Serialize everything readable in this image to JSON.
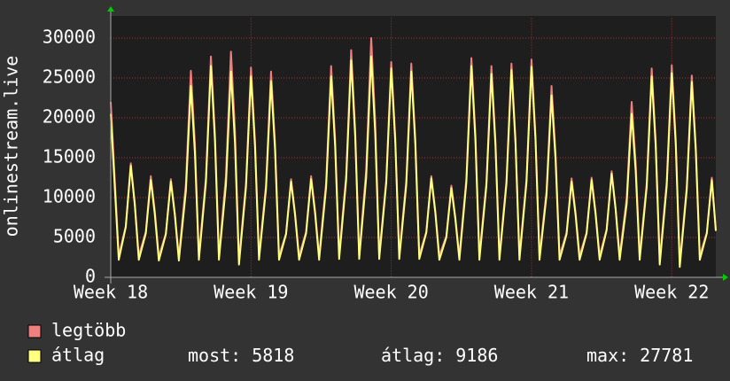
{
  "chart_data": {
    "type": "line",
    "y_label": "onlinestream.live",
    "x": [
      0,
      0.4,
      0.75,
      1,
      1.2,
      1.4,
      1.75,
      2,
      2.2,
      2.4,
      2.75,
      3,
      3.2,
      3.4,
      3.75,
      4,
      4.2,
      4.4,
      4.75,
      5,
      5.2,
      5.4,
      5.75,
      6,
      6.2,
      6.4,
      6.75,
      7,
      7.2,
      7.4,
      7.75,
      8,
      8.2,
      8.4,
      8.75,
      9,
      9.2,
      9.4,
      9.75,
      10,
      10.2,
      10.4,
      10.75,
      11,
      11.2,
      11.4,
      11.75,
      12,
      12.2,
      12.4,
      12.75,
      13,
      13.2,
      13.4,
      13.75,
      14,
      14.2,
      14.4,
      14.75,
      15,
      15.2,
      15.4,
      15.75,
      16,
      16.2,
      16.4,
      16.75,
      17,
      17.2,
      17.4,
      17.75,
      18,
      18.2,
      18.4,
      18.75,
      19,
      19.2,
      19.4,
      19.75,
      20,
      20.2,
      20.4,
      20.75,
      21,
      21.2,
      21.4,
      21.75,
      22,
      22.2,
      22.4,
      22.75,
      23,
      23.2,
      23.4,
      23.75,
      24,
      24.2,
      24.4,
      24.75,
      25,
      25.2,
      25.4,
      25.75,
      26,
      26.2,
      26.4,
      26.75,
      27,
      27.2,
      27.4,
      27.75,
      28,
      28.2,
      28.4,
      28.75,
      29,
      29.2,
      29.4,
      29.75,
      30,
      30.2
    ],
    "series": [
      {
        "name": "legtöbb",
        "color": "#f08080",
        "values": [
          22000,
          2700,
          6400,
          14300,
          9300,
          2700,
          5700,
          12700,
          8300,
          2600,
          5500,
          12300,
          8000,
          2600,
          11700,
          25900,
          16800,
          2700,
          12500,
          27700,
          18000,
          2700,
          12700,
          28300,
          18400,
          2200,
          11800,
          26300,
          17100,
          2700,
          11600,
          25800,
          16800,
          2700,
          5500,
          12300,
          8000,
          2700,
          5700,
          12700,
          8300,
          2700,
          11900,
          26500,
          17200,
          2800,
          12800,
          28500,
          18500,
          2800,
          13500,
          30000,
          19500,
          2800,
          12200,
          27000,
          17600,
          2800,
          12100,
          26800,
          17400,
          2800,
          5700,
          12700,
          8300,
          2700,
          5200,
          11500,
          7500,
          2700,
          12400,
          27500,
          17900,
          2700,
          11900,
          26500,
          17200,
          2700,
          12100,
          26800,
          17400,
          2700,
          12300,
          27300,
          17700,
          2700,
          10800,
          24000,
          15600,
          2700,
          5600,
          12400,
          8100,
          2700,
          5600,
          12500,
          8100,
          2700,
          6000,
          13300,
          8600,
          2700,
          9900,
          22000,
          14300,
          2700,
          11800,
          26200,
          17000,
          2200,
          12000,
          26600,
          17300,
          1800,
          11400,
          25300,
          16400,
          2700,
          5600,
          12500,
          6000
        ]
      },
      {
        "name": "átlag",
        "color": "#ffff80",
        "values": [
          20500,
          2200,
          6300,
          14000,
          9100,
          2200,
          5500,
          12200,
          7900,
          2100,
          5400,
          12000,
          7800,
          2100,
          10800,
          24000,
          15600,
          2200,
          11900,
          26500,
          17200,
          2200,
          11600,
          25800,
          16800,
          1600,
          11300,
          25200,
          16400,
          2200,
          11100,
          24600,
          16000,
          2200,
          5400,
          12000,
          7800,
          2200,
          5500,
          12300,
          8000,
          2200,
          11300,
          25200,
          16400,
          2300,
          12200,
          27200,
          17700,
          2300,
          12500,
          27700,
          18000,
          2300,
          11800,
          26200,
          17000,
          2300,
          11600,
          25800,
          16800,
          2300,
          5600,
          12400,
          8100,
          2200,
          5000,
          11200,
          7300,
          2200,
          11900,
          26500,
          17200,
          2200,
          11500,
          25500,
          16600,
          2200,
          11700,
          26000,
          16900,
          2200,
          11900,
          26400,
          17200,
          2200,
          10300,
          22800,
          14800,
          2200,
          5400,
          12000,
          7800,
          2200,
          5500,
          12200,
          7900,
          2200,
          5900,
          13000,
          8500,
          2200,
          9200,
          20500,
          13300,
          2200,
          11300,
          25200,
          16400,
          1600,
          11500,
          25600,
          16600,
          1300,
          11000,
          24500,
          15900,
          2200,
          5500,
          12200,
          5818
        ]
      }
    ],
    "xlim": [
      0,
      30.2
    ],
    "xticks": [
      {
        "value": 0,
        "label": "Week 18"
      },
      {
        "value": 7,
        "label": "Week 19"
      },
      {
        "value": 14,
        "label": "Week 20"
      },
      {
        "value": 21,
        "label": "Week 21"
      },
      {
        "value": 28,
        "label": "Week 22"
      }
    ],
    "ylim": [
      0,
      32500
    ],
    "yticks": [
      0,
      5000,
      10000,
      15000,
      20000,
      25000,
      30000
    ],
    "grid": true,
    "stats": [
      {
        "label": "most:",
        "value": 5818
      },
      {
        "label": "átlag:",
        "value": 9186
      },
      {
        "label": "max:",
        "value": 27781
      }
    ]
  }
}
